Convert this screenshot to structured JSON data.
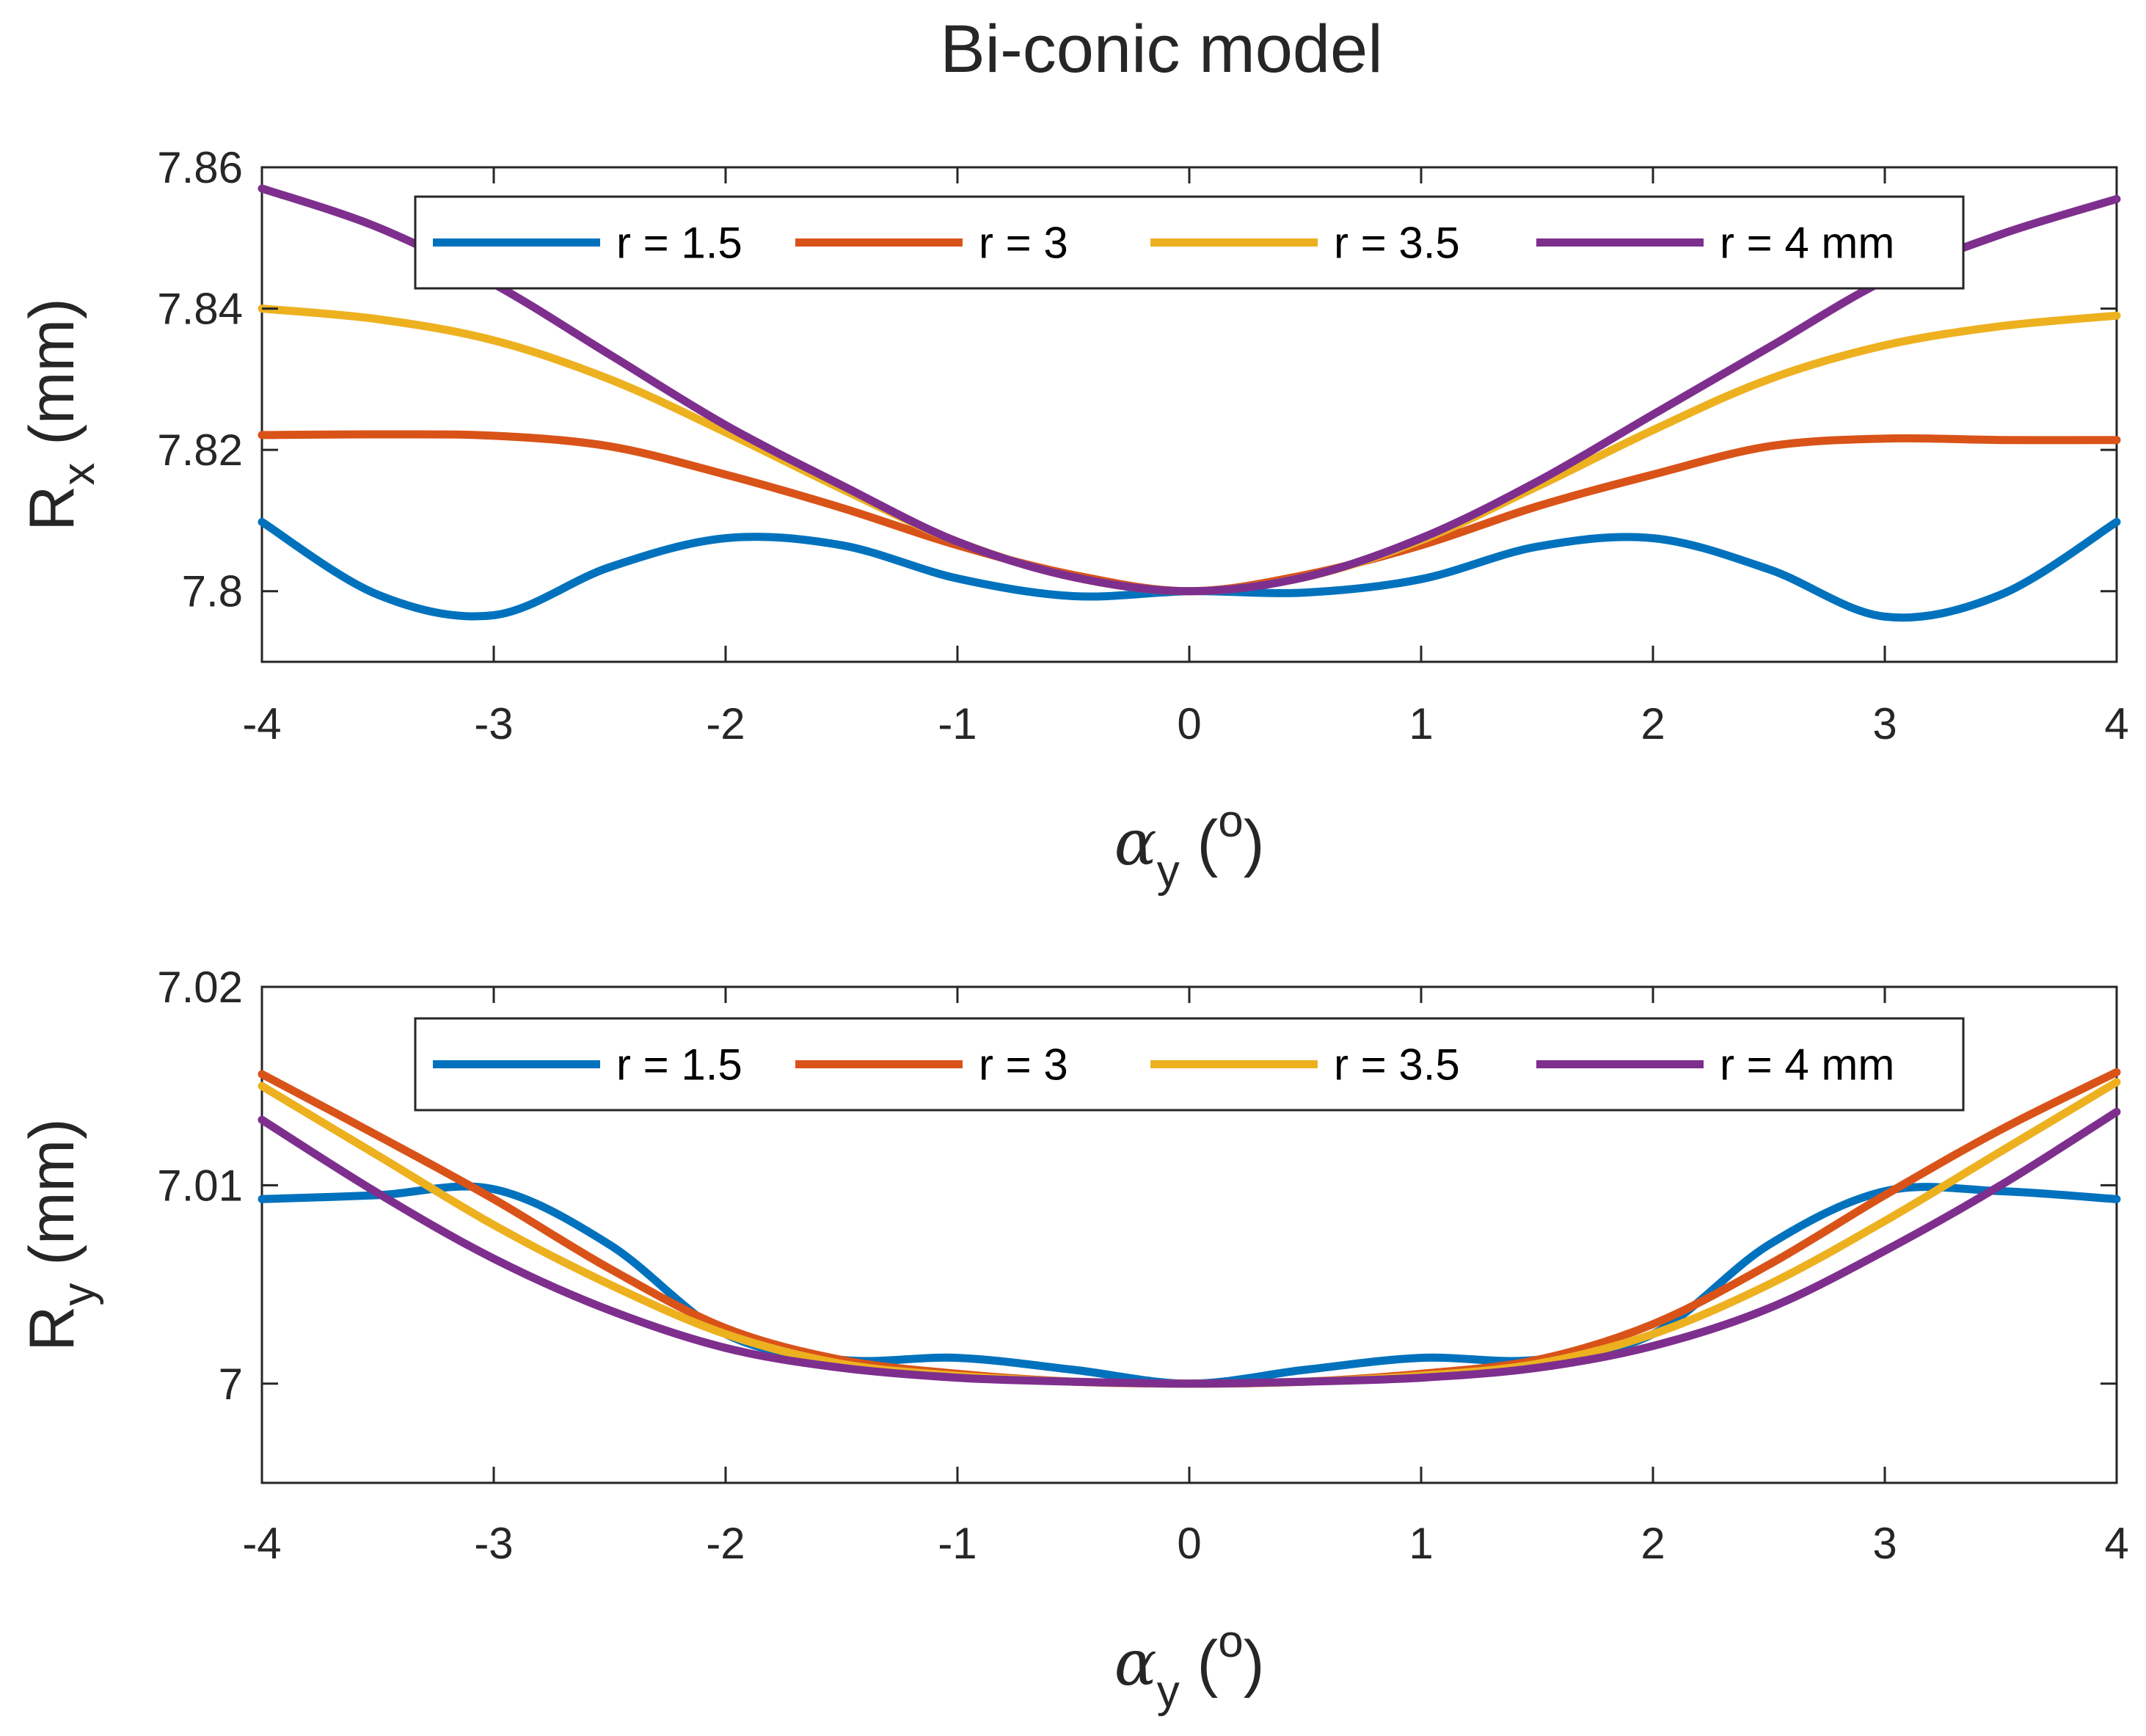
{
  "title": "Bi-conic model",
  "colors": {
    "r1_5": "#0072BD",
    "r3": "#D95319",
    "r3_5": "#EDB120",
    "r4": "#7E2F8E",
    "axes": "#262626"
  },
  "chart_data": [
    {
      "type": "line",
      "title": "Bi-conic model",
      "xlabel": {
        "symbol": "α",
        "subscript": "y",
        "open": " (",
        "unit": "o",
        "close": ")"
      },
      "ylabel": {
        "main": "R",
        "subscript": "x",
        "unit": " (mm)"
      },
      "xlim": [
        -4,
        4
      ],
      "ylim": [
        7.79,
        7.86
      ],
      "xticks": [
        "-4",
        "-3",
        "-2",
        "-1",
        "0",
        "1",
        "2",
        "3",
        "4"
      ],
      "yticks": [
        "7.8",
        "7.82",
        "7.84",
        "7.86"
      ],
      "legend": "top-center",
      "legend_labels": [
        "r = 1.5",
        "r = 3",
        "r = 3.5",
        "r = 4 mm"
      ],
      "grid": false,
      "x": [
        -4,
        -3.5,
        -3,
        -2.5,
        -2,
        -1.5,
        -1,
        -0.5,
        0,
        0.5,
        1,
        1.5,
        2,
        2.5,
        3,
        3.5,
        4
      ],
      "series": [
        {
          "name": "r = 1.5",
          "color": "#0072BD",
          "values": [
            7.8098,
            7.7995,
            7.7966,
            7.8034,
            7.8075,
            7.8065,
            7.8018,
            7.7993,
            7.8,
            7.7998,
            7.8017,
            7.8063,
            7.8075,
            7.8031,
            7.7964,
            7.7995,
            7.8098
          ]
        },
        {
          "name": "r = 3",
          "color": "#D95319",
          "values": [
            7.8221,
            7.8222,
            7.822,
            7.8205,
            7.8165,
            7.8118,
            7.8065,
            7.8023,
            7.8,
            7.8023,
            7.8065,
            7.812,
            7.8165,
            7.8205,
            7.8216,
            7.8214,
            7.8214
          ]
        },
        {
          "name": "r = 3.5",
          "color": "#EDB120",
          "values": [
            7.84,
            7.8385,
            7.8355,
            7.83,
            7.8225,
            7.8145,
            7.807,
            7.802,
            7.8,
            7.802,
            7.8072,
            7.8148,
            7.8228,
            7.83,
            7.8348,
            7.8375,
            7.839
          ]
        },
        {
          "name": "r = 4 mm",
          "color": "#7E2F8E",
          "values": [
            7.857,
            7.8515,
            7.8435,
            7.8335,
            7.8235,
            7.815,
            7.807,
            7.802,
            7.8,
            7.802,
            7.8075,
            7.8155,
            7.825,
            7.8345,
            7.844,
            7.8505,
            7.8555
          ]
        }
      ]
    },
    {
      "type": "line",
      "xlabel": {
        "symbol": "α",
        "subscript": "y",
        "open": " (",
        "unit": "o",
        "close": ")"
      },
      "ylabel": {
        "main": "R",
        "subscript": "y",
        "unit": " (mm)"
      },
      "xlim": [
        -4,
        4
      ],
      "ylim": [
        6.995,
        7.02
      ],
      "xticks": [
        "-4",
        "-3",
        "-2",
        "-1",
        "0",
        "1",
        "2",
        "3",
        "4"
      ],
      "yticks": [
        "7",
        "7.01",
        "7.02"
      ],
      "legend": "top-center",
      "legend_labels": [
        "r = 1.5",
        "r = 3",
        "r = 3.5",
        "r = 4 mm"
      ],
      "grid": false,
      "x": [
        -4,
        -3.5,
        -3,
        -2.5,
        -2,
        -1.5,
        -1,
        -0.5,
        0,
        0.5,
        1,
        1.5,
        2,
        2.5,
        3,
        3.5,
        4
      ],
      "series": [
        {
          "name": "r = 1.5",
          "color": "#0072BD",
          "values": [
            7.0093,
            7.0095,
            7.0098,
            7.007,
            7.0025,
            7.0012,
            7.0013,
            7.0007,
            7.0,
            7.0007,
            7.0013,
            7.0012,
            7.0025,
            7.007,
            7.0097,
            7.0097,
            7.0093
          ]
        },
        {
          "name": "r = 3",
          "color": "#D95319",
          "values": [
            7.0156,
            7.0125,
            7.0093,
            7.0058,
            7.0028,
            7.0012,
            7.0005,
            7.0001,
            7.0,
            7.0001,
            7.0005,
            7.0012,
            7.003,
            7.006,
            7.0095,
            7.0128,
            7.0157
          ]
        },
        {
          "name": "r = 3.5",
          "color": "#EDB120",
          "values": [
            7.015,
            7.0115,
            7.008,
            7.005,
            7.0025,
            7.001,
            7.0004,
            7.0001,
            7.0,
            7.0001,
            7.0004,
            7.001,
            7.0025,
            7.005,
            7.0082,
            7.0117,
            7.0152
          ]
        },
        {
          "name": "r = 4 mm",
          "color": "#7E2F8E",
          "values": [
            7.0133,
            7.0096,
            7.0063,
            7.0037,
            7.0018,
            7.0008,
            7.0003,
            7.0001,
            7.0,
            7.0001,
            7.0003,
            7.0008,
            7.0019,
            7.0038,
            7.0067,
            7.01,
            7.0137
          ]
        }
      ]
    }
  ]
}
